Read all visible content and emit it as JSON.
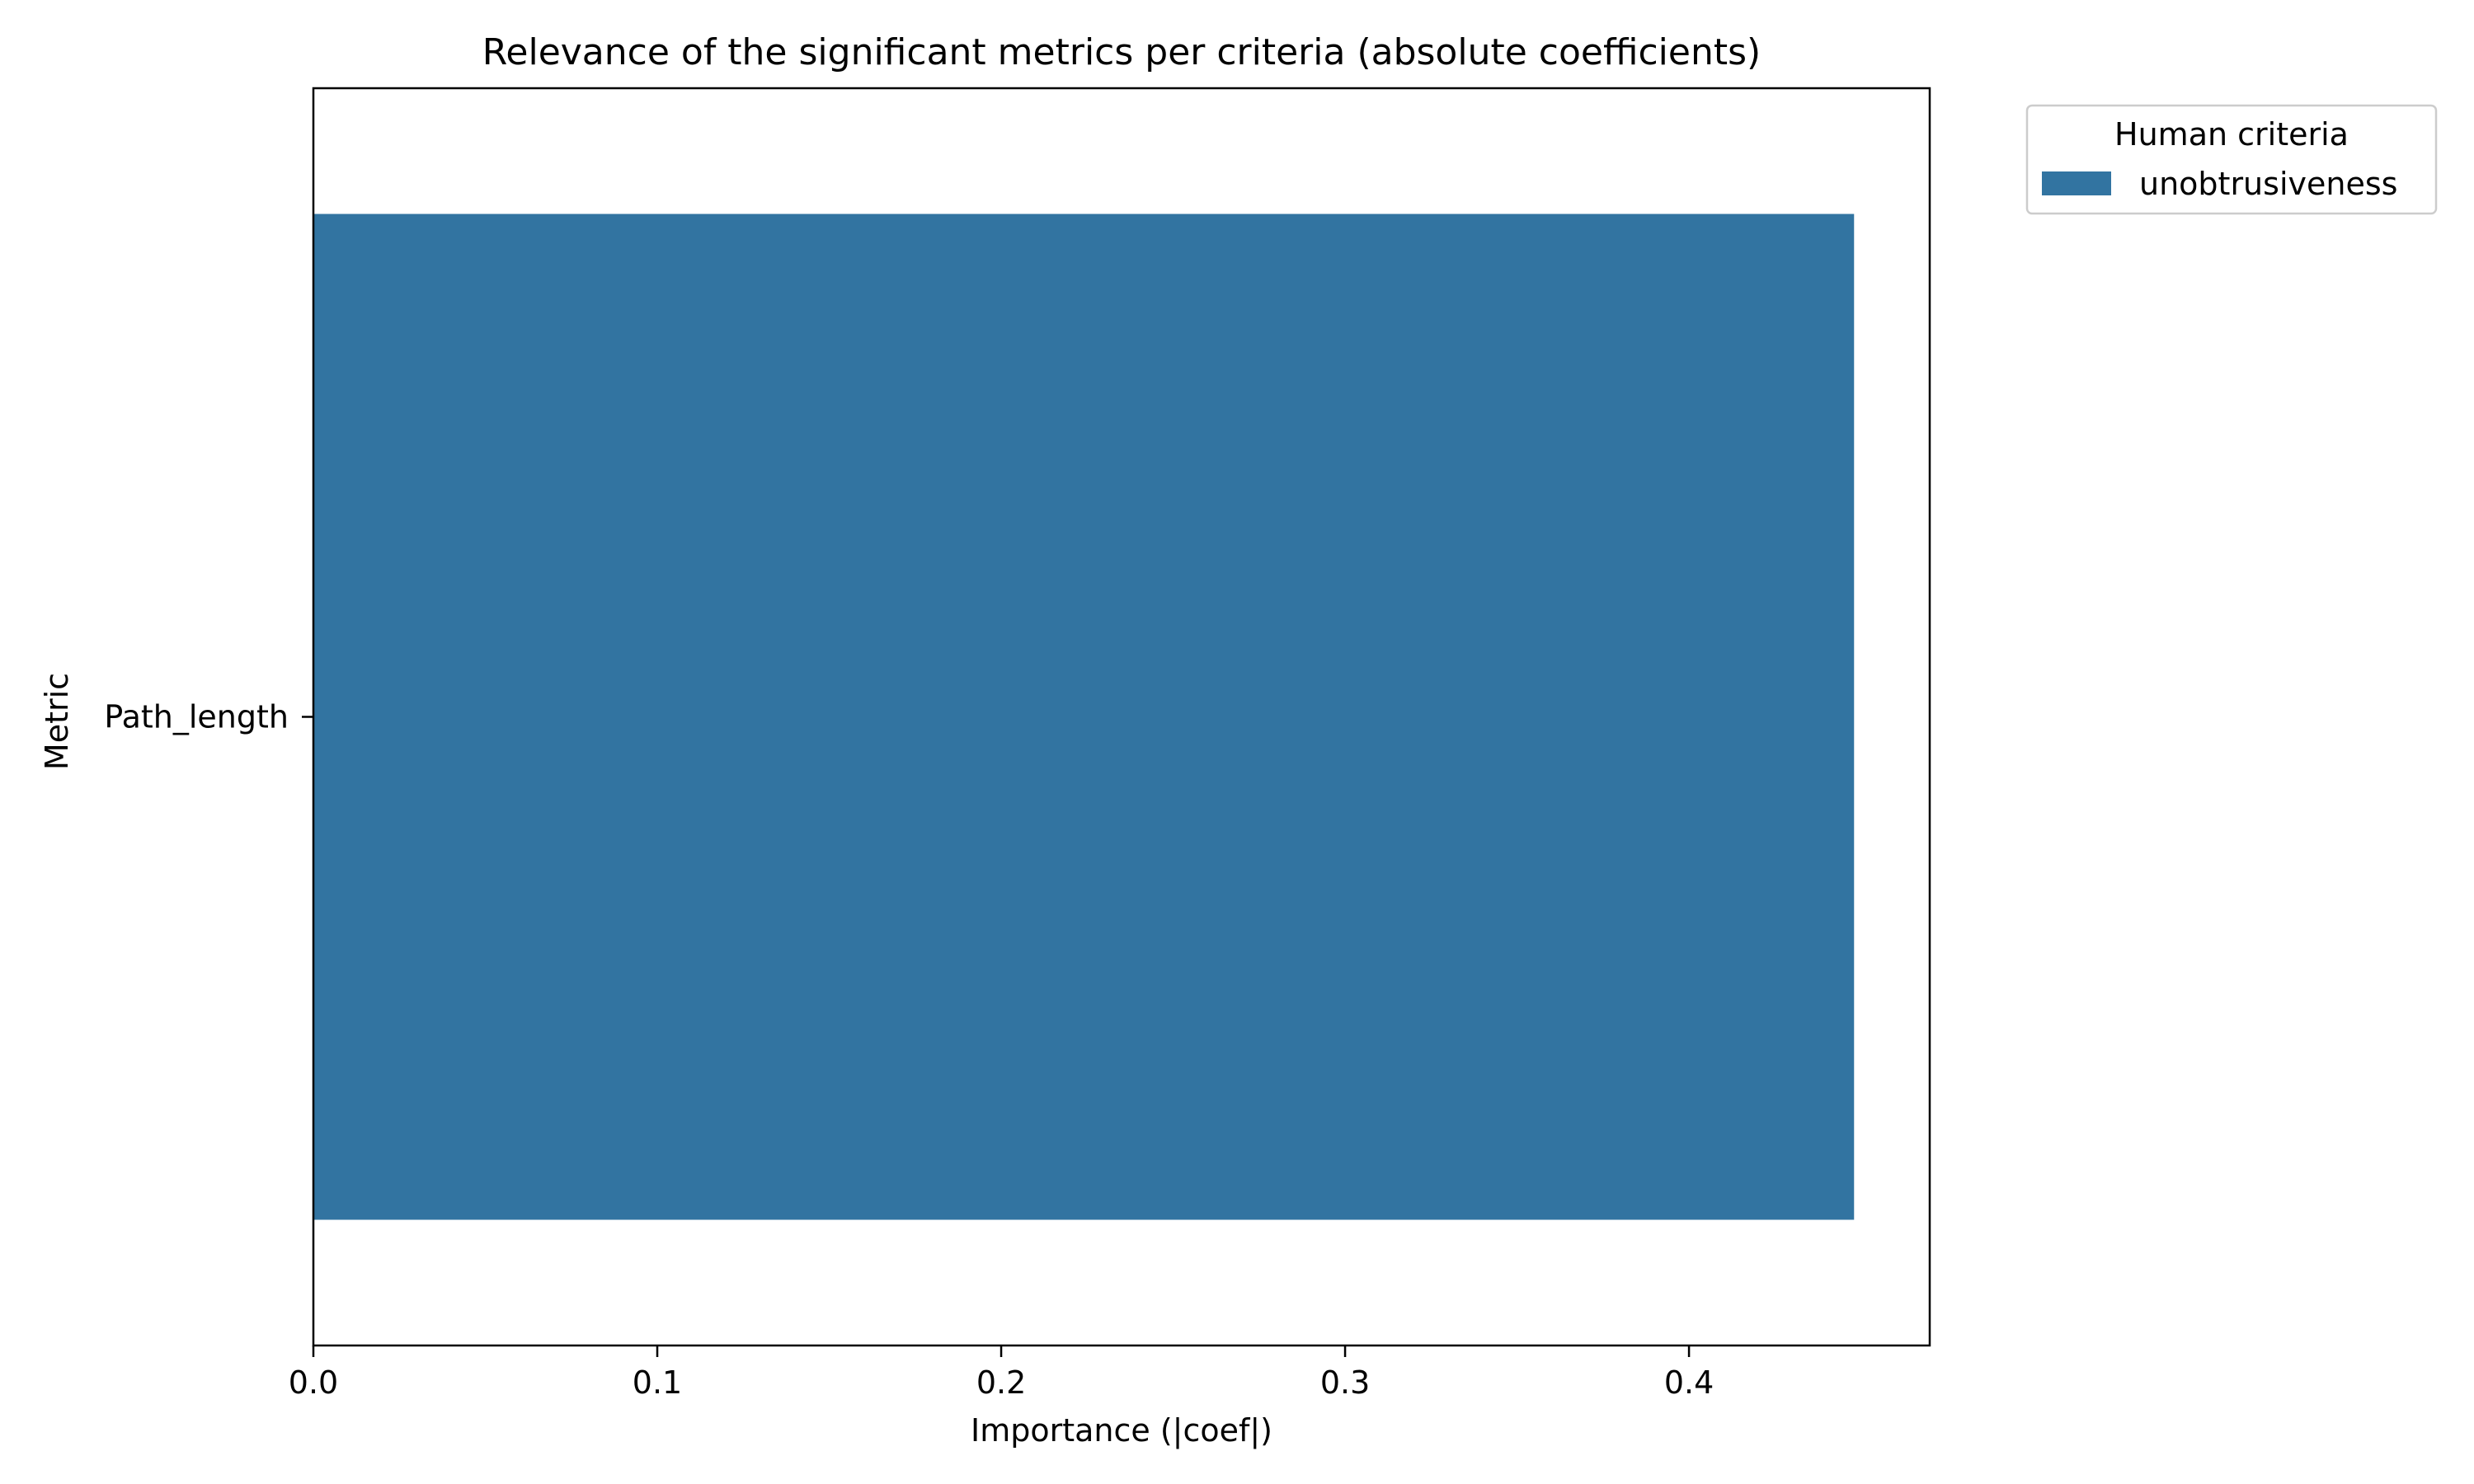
{
  "chart_data": {
    "type": "bar",
    "orientation": "horizontal",
    "title": "Relevance of the significant metrics per criteria (absolute coefficients)",
    "xlabel": "Importance (|coef|)",
    "ylabel": "Metric",
    "categories": [
      "Path_length"
    ],
    "series": [
      {
        "name": "unobtrusiveness",
        "values": [
          0.448
        ],
        "color": "#3274a1"
      }
    ],
    "xlim": [
      0,
      0.47
    ],
    "xticks": [
      "0.0",
      "0.1",
      "0.2",
      "0.3",
      "0.4"
    ],
    "grid": false,
    "legend": {
      "title": "Human criteria",
      "placement": "outside-top-right"
    }
  }
}
